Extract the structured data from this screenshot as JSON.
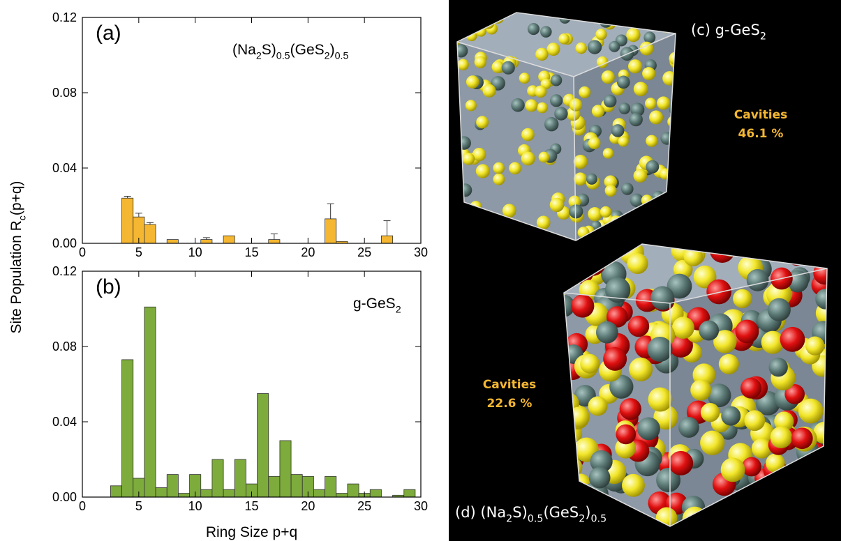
{
  "chart_data": [
    {
      "type": "bar",
      "panel_label": "(a)",
      "legend_text": [
        {
          "t": "(Na"
        },
        {
          "t": "2",
          "sub": true
        },
        {
          "t": "S)"
        },
        {
          "t": "0.5",
          "sub": true
        },
        {
          "t": "(GeS"
        },
        {
          "t": "2",
          "sub": true
        },
        {
          "t": ")"
        },
        {
          "t": "0.5",
          "sub": true
        }
      ],
      "ylabel": [
        {
          "t": "Site Population R"
        },
        {
          "t": "c",
          "sub": true
        },
        {
          "t": "(p+q)"
        }
      ],
      "x": [
        4,
        5,
        6,
        8,
        11,
        13,
        17,
        22,
        23,
        27
      ],
      "values": [
        0.024,
        0.014,
        0.01,
        0.002,
        0.002,
        0.004,
        0.002,
        0.013,
        0.001,
        0.004
      ],
      "errors": [
        0.001,
        0.002,
        0.001,
        null,
        0.001,
        null,
        0.003,
        0.008,
        null,
        0.008
      ],
      "color": "#f5b731",
      "xlim": [
        0,
        30
      ],
      "xticks": [
        0,
        5,
        10,
        15,
        20,
        25,
        30
      ],
      "ylim": [
        0,
        0.12
      ],
      "yticks": [
        {
          "value": 0,
          "label": "0.00"
        },
        {
          "value": 0.04,
          "label": "0.04"
        },
        {
          "value": 0.08,
          "label": "0.08"
        },
        {
          "value": 0.12,
          "label": "0.12"
        }
      ]
    },
    {
      "type": "bar",
      "panel_label": "(b)",
      "legend_text": [
        {
          "t": "g-GeS"
        },
        {
          "t": "2",
          "sub": true
        }
      ],
      "xlabel": "Ring Size p+q",
      "x": [
        3,
        4,
        5,
        6,
        7,
        8,
        9,
        10,
        11,
        12,
        13,
        14,
        15,
        16,
        17,
        18,
        19,
        20,
        21,
        22,
        23,
        24,
        25,
        26,
        28,
        29
      ],
      "values": [
        0.006,
        0.073,
        0.01,
        0.101,
        0.005,
        0.012,
        0.002,
        0.012,
        0.004,
        0.02,
        0.004,
        0.02,
        0.007,
        0.055,
        0.011,
        0.03,
        0.012,
        0.011,
        0.004,
        0.011,
        0.002,
        0.007,
        0.002,
        0.004,
        0.001,
        0.004
      ],
      "color": "#7dab3c",
      "xlim": [
        0,
        30
      ],
      "xticks": [
        0,
        5,
        10,
        15,
        20,
        25,
        30
      ],
      "ylim": [
        0,
        0.12
      ],
      "yticks": [
        {
          "value": 0,
          "label": "0.00"
        },
        {
          "value": 0.04,
          "label": "0.04"
        },
        {
          "value": 0.08,
          "label": "0.08"
        },
        {
          "value": 0.12,
          "label": "0.12"
        }
      ]
    }
  ],
  "panels": [
    {
      "label": [
        {
          "t": "(c) g-GeS"
        },
        {
          "t": "2",
          "sub": true
        }
      ],
      "cavities": "Cavities",
      "percent": "46.1 %"
    },
    {
      "label": [
        {
          "t": "(d) (Na"
        },
        {
          "t": "2",
          "sub": true
        },
        {
          "t": "S)"
        },
        {
          "t": "0.5",
          "sub": true
        },
        {
          "t": "(GeS"
        },
        {
          "t": "2",
          "sub": true
        },
        {
          "t": ")"
        },
        {
          "t": "0.5",
          "sub": true
        }
      ],
      "cavities": "Cavities",
      "percent": "22.6 %"
    }
  ]
}
